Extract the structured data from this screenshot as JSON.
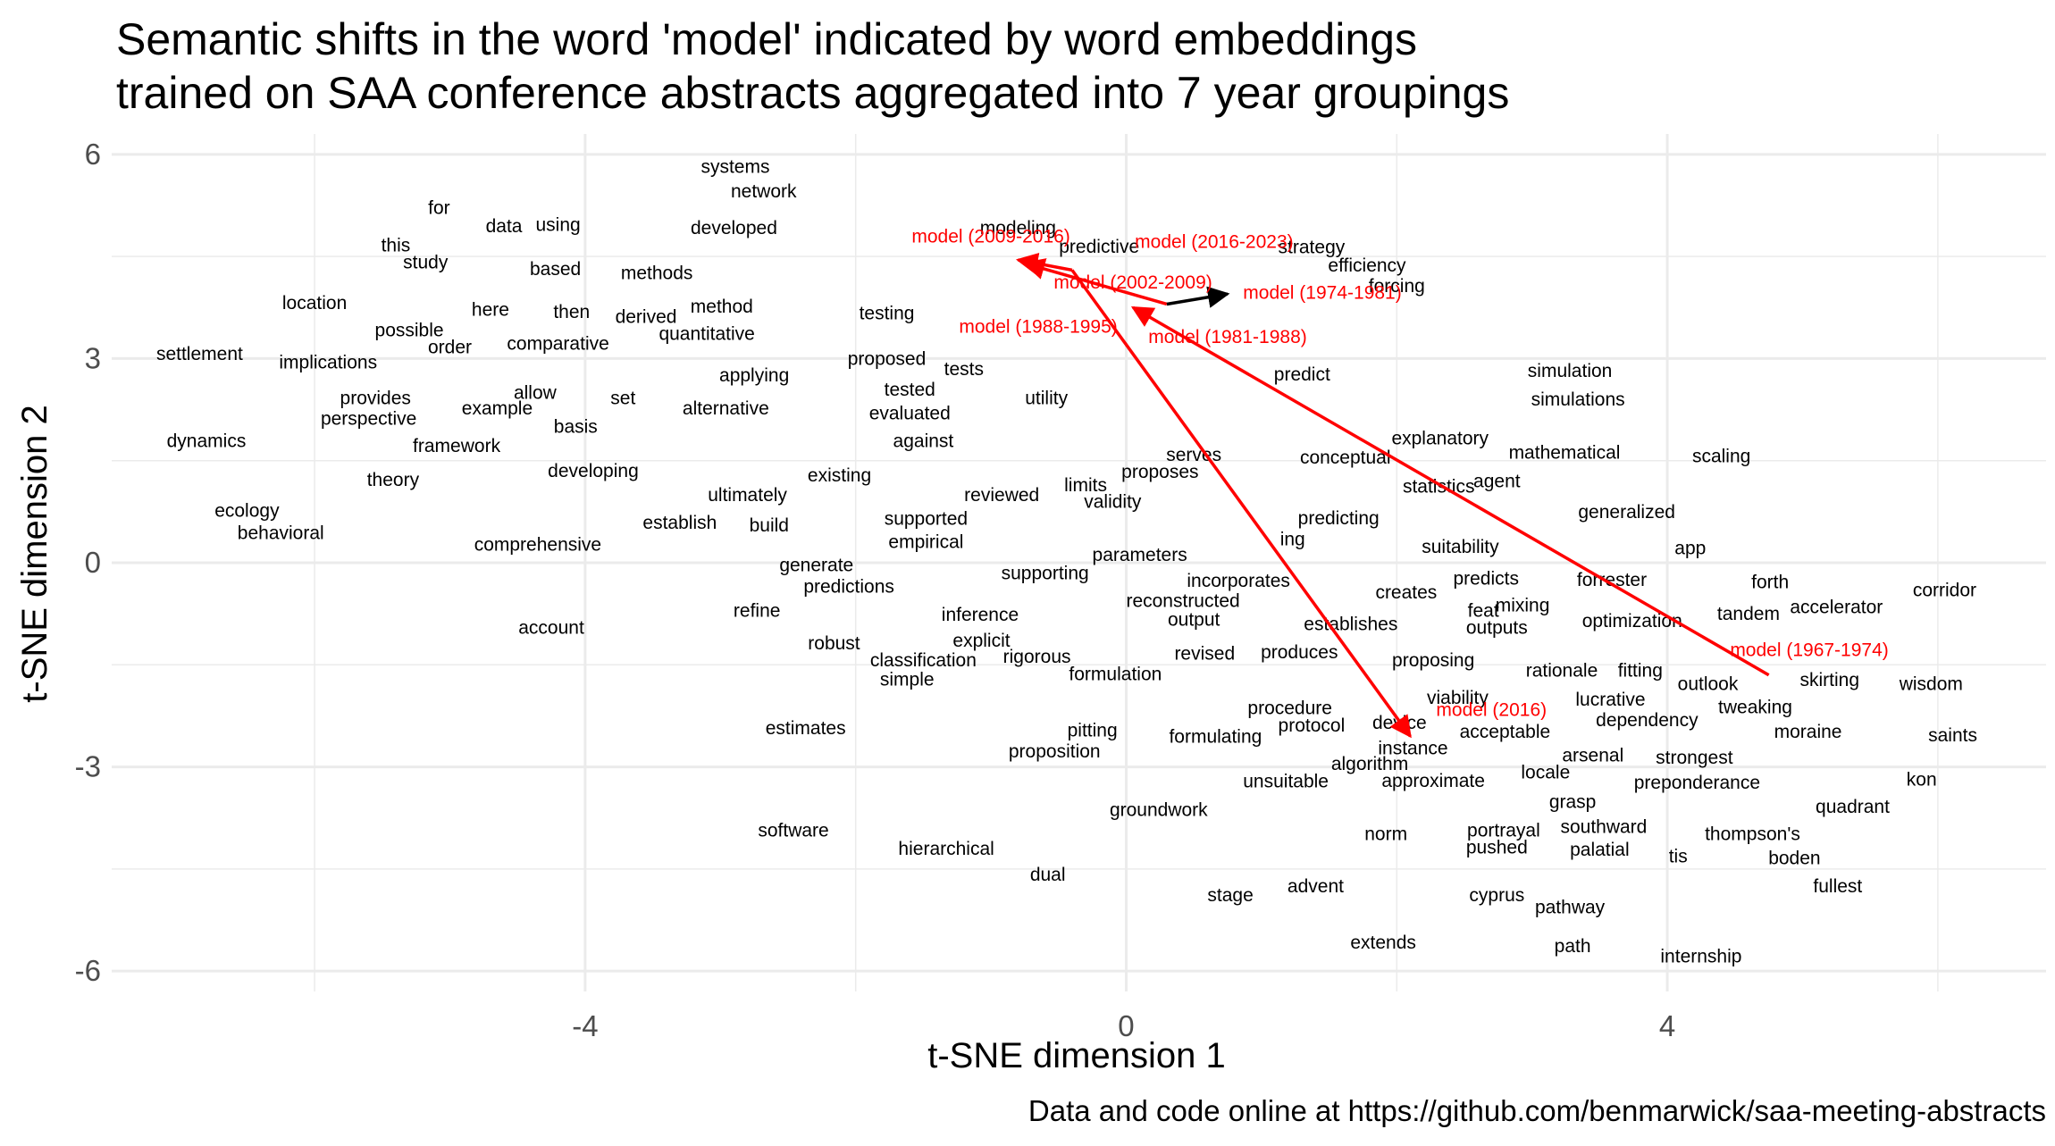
{
  "chart_data": {
    "type": "scatter",
    "title_lines": [
      "Semantic shifts in the word 'model' indicated by word embeddings",
      "trained on SAA conference abstracts aggregated into 7 year groupings"
    ],
    "xlabel": "t-SNE dimension 1",
    "ylabel": "t-SNE dimension 2",
    "caption": "Data and code online at https://github.com/benmarwick/saa-meeting-abstracts",
    "xlim": [
      -7.5,
      6.8
    ],
    "ylim": [
      -6.3,
      6.3
    ],
    "x_ticks": [
      -4,
      0,
      4
    ],
    "y_ticks": [
      6,
      3,
      0,
      -3,
      -6
    ],
    "grid": true,
    "colors": {
      "word": "#000000",
      "model": "#ff0000",
      "grid": "#ebebeb",
      "axis_text": "#4d4d4d",
      "arrow_initial": "#000000"
    },
    "words": [
      {
        "text": "systems",
        "x": -2.89,
        "y": 5.8
      },
      {
        "text": "network",
        "x": -2.68,
        "y": 5.44
      },
      {
        "text": "for",
        "x": -5.08,
        "y": 5.2
      },
      {
        "text": "data",
        "x": -4.6,
        "y": 4.93
      },
      {
        "text": "using",
        "x": -4.2,
        "y": 4.95
      },
      {
        "text": "developed",
        "x": -2.9,
        "y": 4.9
      },
      {
        "text": "this",
        "x": -5.4,
        "y": 4.65
      },
      {
        "text": "study",
        "x": -5.18,
        "y": 4.4
      },
      {
        "text": "based",
        "x": -4.22,
        "y": 4.3
      },
      {
        "text": "methods",
        "x": -3.47,
        "y": 4.24
      },
      {
        "text": "location",
        "x": -6.0,
        "y": 3.8
      },
      {
        "text": "here",
        "x": -4.7,
        "y": 3.7
      },
      {
        "text": "then",
        "x": -4.1,
        "y": 3.67
      },
      {
        "text": "derived",
        "x": -3.55,
        "y": 3.6
      },
      {
        "text": "method",
        "x": -2.99,
        "y": 3.75
      },
      {
        "text": "testing",
        "x": -1.77,
        "y": 3.65
      },
      {
        "text": "possible",
        "x": -5.3,
        "y": 3.4
      },
      {
        "text": "order",
        "x": -5.0,
        "y": 3.15
      },
      {
        "text": "comparative",
        "x": -4.2,
        "y": 3.2
      },
      {
        "text": "quantitative",
        "x": -3.1,
        "y": 3.35
      },
      {
        "text": "settlement",
        "x": -6.85,
        "y": 3.05
      },
      {
        "text": "implications",
        "x": -5.9,
        "y": 2.93
      },
      {
        "text": "proposed",
        "x": -1.77,
        "y": 2.98
      },
      {
        "text": "tests",
        "x": -1.2,
        "y": 2.83
      },
      {
        "text": "applying",
        "x": -2.75,
        "y": 2.74
      },
      {
        "text": "tested",
        "x": -1.6,
        "y": 2.53
      },
      {
        "text": "allow",
        "x": -4.37,
        "y": 2.48
      },
      {
        "text": "set",
        "x": -3.72,
        "y": 2.4
      },
      {
        "text": "provides",
        "x": -5.55,
        "y": 2.4
      },
      {
        "text": "example",
        "x": -4.65,
        "y": 2.25
      },
      {
        "text": "alternative",
        "x": -2.96,
        "y": 2.25
      },
      {
        "text": "evaluated",
        "x": -1.6,
        "y": 2.18
      },
      {
        "text": "utility",
        "x": -0.59,
        "y": 2.4
      },
      {
        "text": "perspective",
        "x": -5.6,
        "y": 2.1
      },
      {
        "text": "basis",
        "x": -4.07,
        "y": 1.98
      },
      {
        "text": "dynamics",
        "x": -6.8,
        "y": 1.77
      },
      {
        "text": "framework",
        "x": -4.95,
        "y": 1.7
      },
      {
        "text": "against",
        "x": -1.5,
        "y": 1.77
      },
      {
        "text": "serves",
        "x": 0.5,
        "y": 1.57
      },
      {
        "text": "conceptual",
        "x": 1.62,
        "y": 1.53
      },
      {
        "text": "explanatory",
        "x": 2.32,
        "y": 1.81
      },
      {
        "text": "mathematical",
        "x": 3.24,
        "y": 1.6
      },
      {
        "text": "scaling",
        "x": 4.4,
        "y": 1.55
      },
      {
        "text": "theory",
        "x": -5.42,
        "y": 1.2
      },
      {
        "text": "developing",
        "x": -3.94,
        "y": 1.33
      },
      {
        "text": "existing",
        "x": -2.12,
        "y": 1.27
      },
      {
        "text": "proposes",
        "x": 0.25,
        "y": 1.32
      },
      {
        "text": "agent",
        "x": 2.74,
        "y": 1.18
      },
      {
        "text": "limits",
        "x": -0.3,
        "y": 1.12
      },
      {
        "text": "statistics",
        "x": 2.31,
        "y": 1.1
      },
      {
        "text": "ultimately",
        "x": -2.8,
        "y": 0.98
      },
      {
        "text": "reviewed",
        "x": -0.92,
        "y": 0.98
      },
      {
        "text": "validity",
        "x": -0.1,
        "y": 0.88
      },
      {
        "text": "ecology",
        "x": -6.5,
        "y": 0.75
      },
      {
        "text": "generalized",
        "x": 3.7,
        "y": 0.73
      },
      {
        "text": "supported",
        "x": -1.48,
        "y": 0.63
      },
      {
        "text": "predicting",
        "x": 1.57,
        "y": 0.64
      },
      {
        "text": "establish",
        "x": -3.3,
        "y": 0.57
      },
      {
        "text": "build",
        "x": -2.64,
        "y": 0.53
      },
      {
        "text": "behavioral",
        "x": -6.25,
        "y": 0.42
      },
      {
        "text": "comprehensive",
        "x": -4.35,
        "y": 0.25
      },
      {
        "text": "empirical",
        "x": -1.48,
        "y": 0.29
      },
      {
        "text": "ing",
        "x": 1.23,
        "y": 0.33
      },
      {
        "text": "suitability",
        "x": 2.47,
        "y": 0.22
      },
      {
        "text": "app",
        "x": 4.17,
        "y": 0.2
      },
      {
        "text": "parameters",
        "x": 0.1,
        "y": 0.1
      },
      {
        "text": "generate",
        "x": -2.29,
        "y": -0.05
      },
      {
        "text": "supporting",
        "x": -0.6,
        "y": -0.17
      },
      {
        "text": "predicts",
        "x": 2.66,
        "y": -0.25
      },
      {
        "text": "forrester",
        "x": 3.59,
        "y": -0.27
      },
      {
        "text": "forth",
        "x": 4.76,
        "y": -0.3
      },
      {
        "text": "corridor",
        "x": 6.05,
        "y": -0.42
      },
      {
        "text": "predictions",
        "x": -2.05,
        "y": -0.37
      },
      {
        "text": "incorporates",
        "x": 0.83,
        "y": -0.28
      },
      {
        "text": "creates",
        "x": 2.07,
        "y": -0.45
      },
      {
        "text": "reconstructed",
        "x": 0.42,
        "y": -0.58
      },
      {
        "text": "mixing",
        "x": 2.93,
        "y": -0.64
      },
      {
        "text": "accelerator",
        "x": 5.25,
        "y": -0.67
      },
      {
        "text": "refine",
        "x": -2.73,
        "y": -0.72
      },
      {
        "text": "inference",
        "x": -1.08,
        "y": -0.78
      },
      {
        "text": "feat",
        "x": 2.64,
        "y": -0.72
      },
      {
        "text": "tandem",
        "x": 4.6,
        "y": -0.77
      },
      {
        "text": "output",
        "x": 0.5,
        "y": -0.85
      },
      {
        "text": "establishes",
        "x": 1.66,
        "y": -0.92
      },
      {
        "text": "optimization",
        "x": 3.74,
        "y": -0.87
      },
      {
        "text": "account",
        "x": -4.25,
        "y": -0.97
      },
      {
        "text": "outputs",
        "x": 2.74,
        "y": -0.97
      },
      {
        "text": "robust",
        "x": -2.16,
        "y": -1.2
      },
      {
        "text": "explicit",
        "x": -1.07,
        "y": -1.16
      },
      {
        "text": "revised",
        "x": 0.58,
        "y": -1.35
      },
      {
        "text": "produces",
        "x": 1.28,
        "y": -1.33
      },
      {
        "text": "rigorous",
        "x": -0.66,
        "y": -1.4
      },
      {
        "text": "classification",
        "x": -1.5,
        "y": -1.45
      },
      {
        "text": "proposing",
        "x": 2.27,
        "y": -1.45
      },
      {
        "text": "rationale",
        "x": 3.22,
        "y": -1.6
      },
      {
        "text": "fitting",
        "x": 3.8,
        "y": -1.6
      },
      {
        "text": "formulation",
        "x": -0.08,
        "y": -1.65
      },
      {
        "text": "simple",
        "x": -1.62,
        "y": -1.73
      },
      {
        "text": "outlook",
        "x": 4.3,
        "y": -1.8
      },
      {
        "text": "skirting",
        "x": 5.2,
        "y": -1.74
      },
      {
        "text": "wisdom",
        "x": 5.95,
        "y": -1.8
      },
      {
        "text": "viability",
        "x": 2.45,
        "y": -2.0
      },
      {
        "text": "lucrative",
        "x": 3.58,
        "y": -2.03
      },
      {
        "text": "tweaking",
        "x": 4.65,
        "y": -2.14
      },
      {
        "text": "procedure",
        "x": 1.21,
        "y": -2.15
      },
      {
        "text": "dependency",
        "x": 3.85,
        "y": -2.33
      },
      {
        "text": "protocol",
        "x": 1.37,
        "y": -2.41
      },
      {
        "text": "device",
        "x": 2.02,
        "y": -2.37
      },
      {
        "text": "estimates",
        "x": -2.37,
        "y": -2.45
      },
      {
        "text": "pitting",
        "x": -0.25,
        "y": -2.48
      },
      {
        "text": "acceptable",
        "x": 2.8,
        "y": -2.5
      },
      {
        "text": "moraine",
        "x": 5.04,
        "y": -2.5
      },
      {
        "text": "saints",
        "x": 6.11,
        "y": -2.55
      },
      {
        "text": "formulating",
        "x": 0.66,
        "y": -2.57
      },
      {
        "text": "instance",
        "x": 2.12,
        "y": -2.74
      },
      {
        "text": "proposition",
        "x": -0.53,
        "y": -2.79
      },
      {
        "text": "arsenal",
        "x": 3.45,
        "y": -2.85
      },
      {
        "text": "strongest",
        "x": 4.2,
        "y": -2.88
      },
      {
        "text": "algorithm",
        "x": 1.8,
        "y": -2.97
      },
      {
        "text": "locale",
        "x": 3.1,
        "y": -3.1
      },
      {
        "text": "unsuitable",
        "x": 1.18,
        "y": -3.23
      },
      {
        "text": "approximate",
        "x": 2.27,
        "y": -3.22
      },
      {
        "text": "preponderance",
        "x": 4.22,
        "y": -3.25
      },
      {
        "text": "kon",
        "x": 5.88,
        "y": -3.2
      },
      {
        "text": "grasp",
        "x": 3.3,
        "y": -3.53
      },
      {
        "text": "quadrant",
        "x": 5.37,
        "y": -3.6
      },
      {
        "text": "groundwork",
        "x": 0.24,
        "y": -3.65
      },
      {
        "text": "software",
        "x": -2.46,
        "y": -3.95
      },
      {
        "text": "portrayal",
        "x": 2.79,
        "y": -3.95
      },
      {
        "text": "southward",
        "x": 3.53,
        "y": -3.9
      },
      {
        "text": "norm",
        "x": 1.92,
        "y": -4.0
      },
      {
        "text": "thompson's",
        "x": 4.63,
        "y": -4.0
      },
      {
        "text": "hierarchical",
        "x": -1.33,
        "y": -4.22
      },
      {
        "text": "pushed",
        "x": 2.74,
        "y": -4.2
      },
      {
        "text": "palatial",
        "x": 3.5,
        "y": -4.23
      },
      {
        "text": "tis",
        "x": 4.08,
        "y": -4.33
      },
      {
        "text": "boden",
        "x": 4.94,
        "y": -4.36
      },
      {
        "text": "dual",
        "x": -0.58,
        "y": -4.6
      },
      {
        "text": "advent",
        "x": 1.4,
        "y": -4.77
      },
      {
        "text": "fullest",
        "x": 5.26,
        "y": -4.77
      },
      {
        "text": "stage",
        "x": 0.77,
        "y": -4.9
      },
      {
        "text": "cyprus",
        "x": 2.74,
        "y": -4.9
      },
      {
        "text": "pathway",
        "x": 3.28,
        "y": -5.08
      },
      {
        "text": "extends",
        "x": 1.9,
        "y": -5.6
      },
      {
        "text": "path",
        "x": 3.3,
        "y": -5.65
      },
      {
        "text": "internship",
        "x": 4.25,
        "y": -5.8
      },
      {
        "text": "strategy",
        "x": 1.37,
        "y": 4.62
      },
      {
        "text": "efficiency",
        "x": 1.78,
        "y": 4.35
      },
      {
        "text": "forcing",
        "x": 2.0,
        "y": 4.05
      },
      {
        "text": "modeling",
        "x": -0.8,
        "y": 4.9
      },
      {
        "text": "predictive",
        "x": -0.2,
        "y": 4.63
      },
      {
        "text": "predict",
        "x": 1.3,
        "y": 2.75
      },
      {
        "text": "simulation",
        "x": 3.28,
        "y": 2.8
      },
      {
        "text": "simulations",
        "x": 3.34,
        "y": 2.38
      }
    ],
    "model_labels": [
      {
        "text": "model (1967-1974)",
        "x": 5.05,
        "y": -1.3
      },
      {
        "text": "model (1974-1981)",
        "x": 1.45,
        "y": 3.95
      },
      {
        "text": "model (1981-1988)",
        "x": 0.75,
        "y": 3.3
      },
      {
        "text": "model (1988-1995)",
        "x": -0.65,
        "y": 3.45
      },
      {
        "text": "model (2002-2009)",
        "x": 0.05,
        "y": 4.1
      },
      {
        "text": "model (2009-2016)",
        "x": -1.0,
        "y": 4.78
      },
      {
        "text": "model (2016-2023)",
        "x": 0.65,
        "y": 4.7
      },
      {
        "text": "model (2016)",
        "x": 2.7,
        "y": -2.18
      }
    ],
    "arrows": [
      {
        "x1": 4.75,
        "y1": -1.65,
        "x2": 0.05,
        "y2": 3.75,
        "color": "#ff0000"
      },
      {
        "x1": 0.3,
        "y1": 3.8,
        "x2": -0.75,
        "y2": 4.4,
        "color": "#ff0000"
      },
      {
        "x1": -0.4,
        "y1": 4.3,
        "x2": -0.8,
        "y2": 4.45,
        "color": "#ff0000"
      },
      {
        "x1": -0.4,
        "y1": 4.3,
        "x2": 2.1,
        "y2": -2.55,
        "color": "#ff0000"
      },
      {
        "x1": 0.3,
        "y1": 3.8,
        "x2": 0.75,
        "y2": 3.95,
        "color": "#000000"
      }
    ]
  }
}
